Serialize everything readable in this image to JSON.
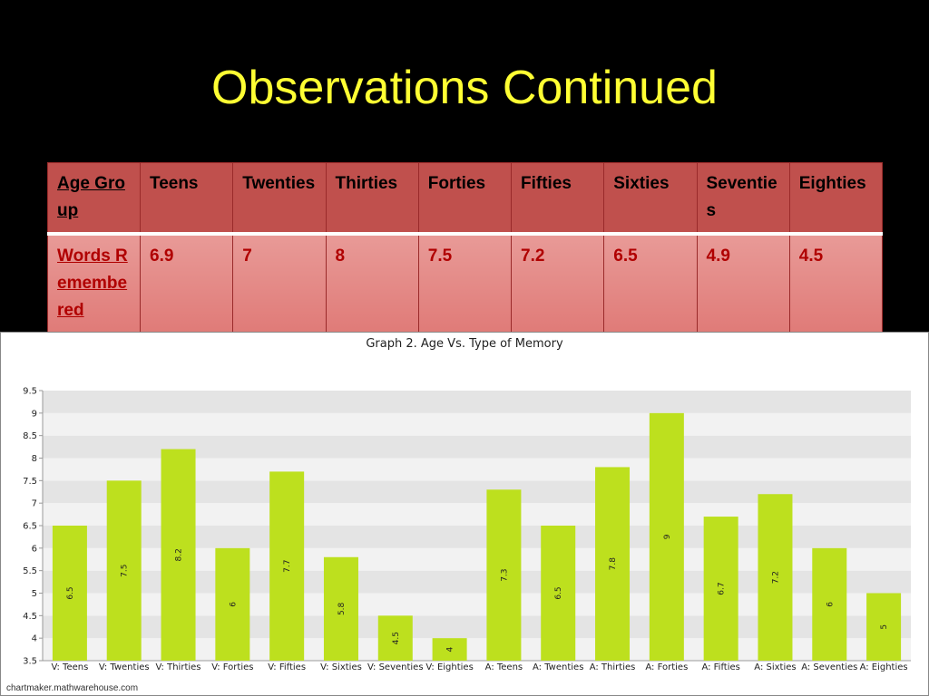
{
  "slide": {
    "title": "Observations Continued"
  },
  "table": {
    "header_label": "Age Group",
    "row_label": "Words Remembered",
    "columns": [
      "Teens",
      "Twenties",
      "Thirties",
      "Forties",
      "Fifties",
      "Sixties",
      "Seventies",
      "Eighties"
    ],
    "values": [
      "6.9",
      "7",
      "8",
      "7.5",
      "7.2",
      "6.5",
      "4.9",
      "4.5"
    ]
  },
  "chart_data": {
    "type": "bar",
    "title": "Graph 2. Age Vs. Type of Memory",
    "categories": [
      "V: Teens",
      "V: Twenties",
      "V: Thirties",
      "V: Forties",
      "V: Fifties",
      "V: Sixties",
      "V: Seventies",
      "V: Eighties",
      "A: Teens",
      "A: Twenties",
      "A: Thirties",
      "A: Forties",
      "A: Fifties",
      "A: Sixties",
      "A: Seventies",
      "A: Eighties"
    ],
    "values": [
      6.5,
      7.5,
      8.2,
      6,
      7.7,
      5.8,
      4.5,
      4,
      7.3,
      6.5,
      7.8,
      9,
      6.7,
      7.2,
      6,
      5
    ],
    "data_labels": [
      "6.5",
      "7.5",
      "8.2",
      "6",
      "7.7",
      "5.8",
      "4.5",
      "4",
      "7.3",
      "6.5",
      "7.8",
      "9",
      "6.7",
      "7.2",
      "6",
      "5"
    ],
    "ylim": [
      3.5,
      9.5
    ],
    "yticks": [
      "3.5",
      "4",
      "4.5",
      "5",
      "5.5",
      "6",
      "6.5",
      "7",
      "7.5",
      "8",
      "8.5",
      "9",
      "9.5"
    ],
    "xlabel": "",
    "ylabel": "",
    "grid": "horizontal bands",
    "bar_color": "#bde01e",
    "footer": "chartmaker.mathwarehouse.com"
  }
}
